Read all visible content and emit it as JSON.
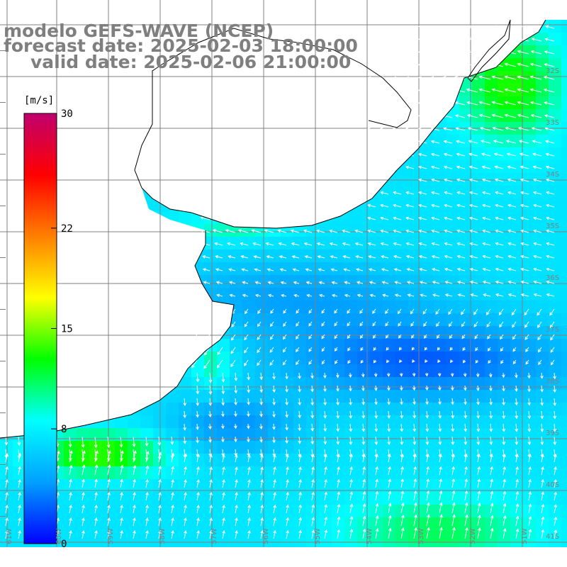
{
  "title": {
    "line1": "modelo GEFS-WAVE (NCEP)",
    "line2": "forecast date: 2025-02-03 18:00:00",
    "line3": "valid date: 2025-02-06 21:00:00"
  },
  "colorbar": {
    "units": "[m/s]",
    "ticks": [
      {
        "label": "30",
        "value": 30
      },
      {
        "label": "22",
        "value": 22
      },
      {
        "label": "15",
        "value": 15
      },
      {
        "label": "8",
        "value": 8
      },
      {
        "label": "0",
        "value": 0
      }
    ],
    "colors": [
      "#0000ff",
      "#00a0ff",
      "#00ffff",
      "#00ff00",
      "#ffff00",
      "#ff8000",
      "#ff0000",
      "#c0006e"
    ]
  },
  "grid_labels": {
    "latitude": [
      "32S",
      "33S",
      "34S",
      "35S",
      "36S",
      "37S",
      "38S",
      "39S",
      "40S",
      "41S"
    ],
    "longitude": [
      "61W",
      "60W",
      "59W",
      "58W",
      "57W",
      "56W",
      "55W",
      "54W",
      "53W",
      "52W",
      "51W"
    ]
  },
  "colors": {
    "land": "#ffffff",
    "coast": "#000000",
    "grid": "#808080",
    "arrows": "#ffffff",
    "title": "#7f7f7f"
  }
}
